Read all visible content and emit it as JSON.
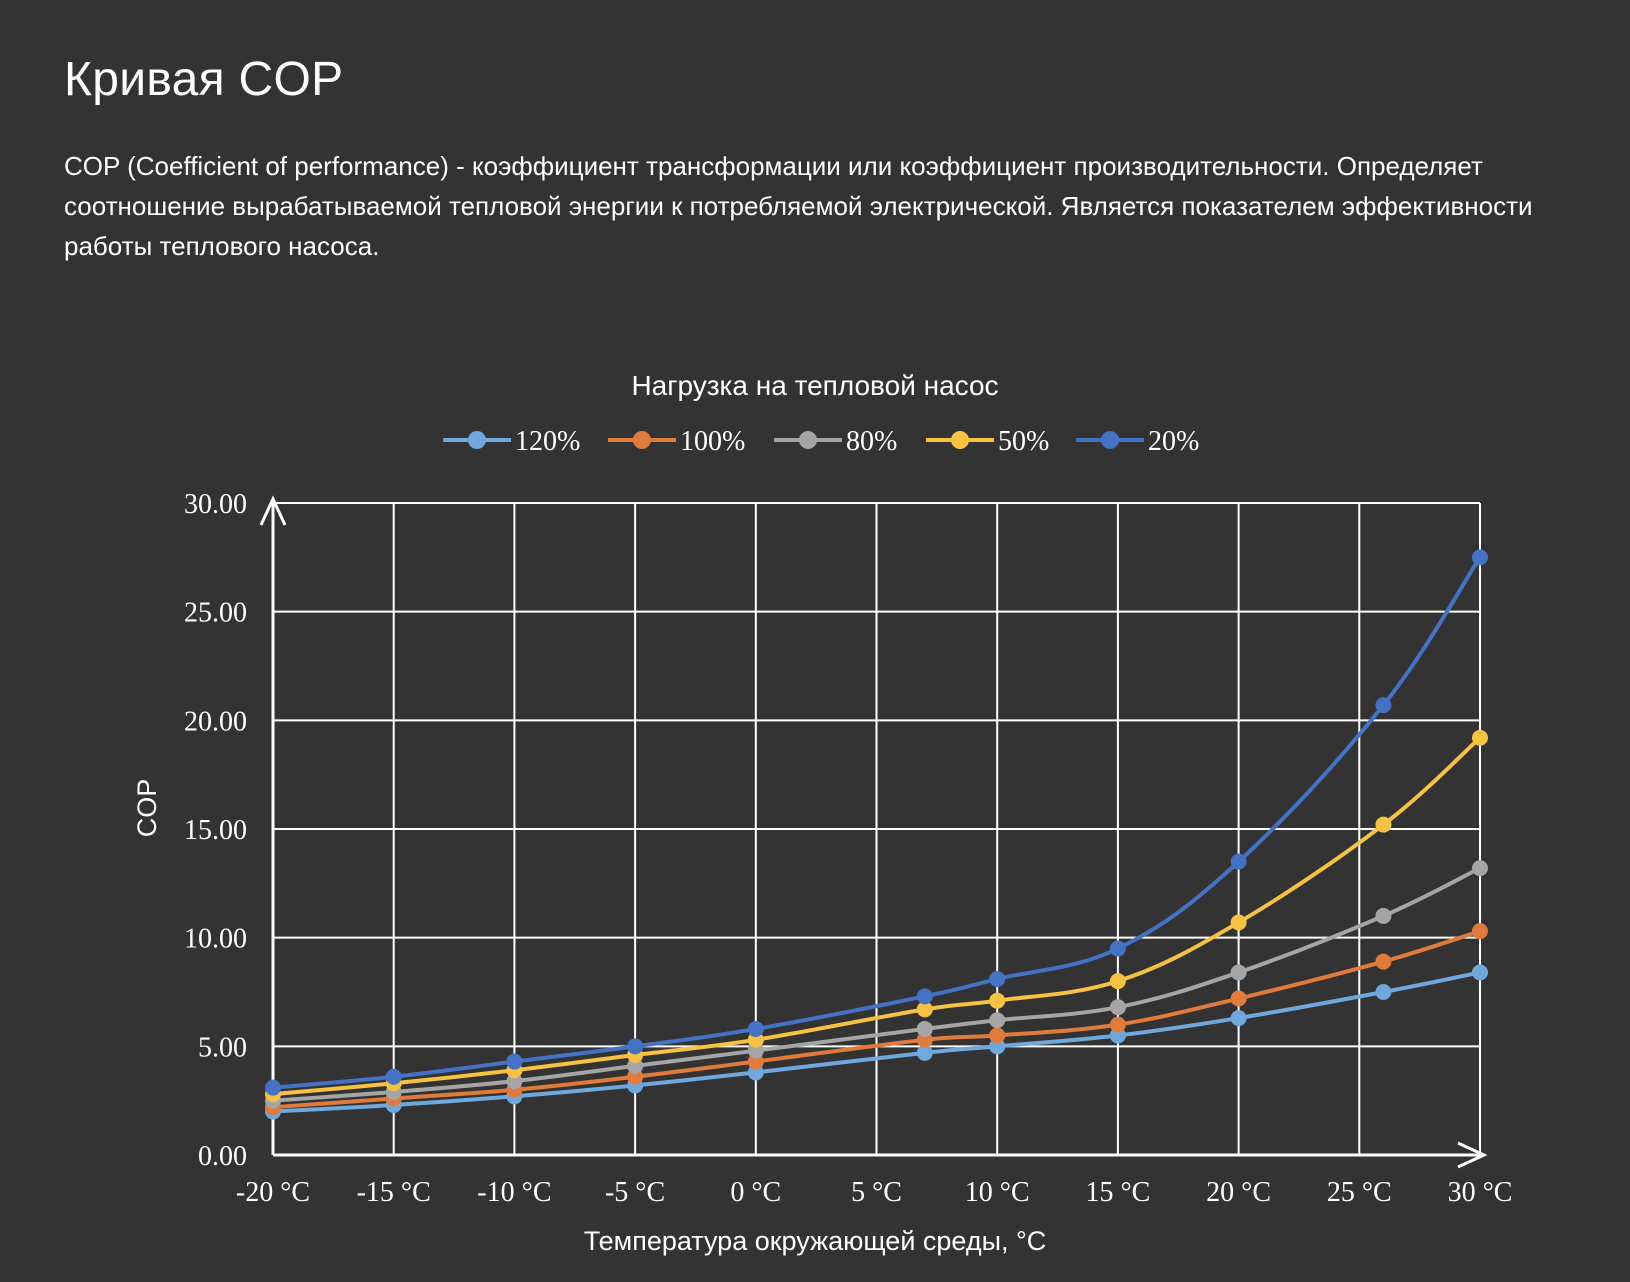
{
  "page": {
    "title": "Кривая COP",
    "description": "COP (Coefficient of performance) - коэффициент трансформации или коэффициент производительности. Определяет соотношение вырабатываемой тепловой энергии к потребляемой электрической. Является показателем эффективности работы теплового насоса."
  },
  "chart_data": {
    "type": "line",
    "title": "Нагрузка на тепловой насос",
    "xlabel": "Температура окружающей среды, °C",
    "ylabel": "COP",
    "x_ticks": [
      "-20 °C",
      "-15 °C",
      "-10 °C",
      "-5 °C",
      "0 °C",
      "5 °C",
      "10 °C",
      "15 °C",
      "20 °C",
      "25 °C",
      "30 °C"
    ],
    "x_tick_values": [
      -20,
      -15,
      -10,
      -5,
      0,
      5,
      10,
      15,
      20,
      25,
      30
    ],
    "y_ticks": [
      "0.00",
      "5.00",
      "10.00",
      "15.00",
      "20.00",
      "25.00",
      "30.00"
    ],
    "y_tick_values": [
      0,
      5,
      10,
      15,
      20,
      25,
      30
    ],
    "xlim": [
      -20,
      30
    ],
    "ylim": [
      0,
      30
    ],
    "grid": true,
    "legend_position": "top",
    "x": [
      -20,
      -15,
      -10,
      -5,
      0,
      7,
      10,
      15,
      20,
      26,
      30
    ],
    "series": [
      {
        "name": "120%",
        "color": "#6fa8dc",
        "values": [
          2.0,
          2.3,
          2.7,
          3.2,
          3.8,
          4.7,
          5.0,
          5.5,
          6.3,
          7.5,
          8.4
        ]
      },
      {
        "name": "100%",
        "color": "#e07b3c",
        "values": [
          2.2,
          2.6,
          3.0,
          3.6,
          4.3,
          5.3,
          5.5,
          6.0,
          7.2,
          8.9,
          10.3
        ]
      },
      {
        "name": "80%",
        "color": "#a5a5a5",
        "values": [
          2.5,
          2.9,
          3.4,
          4.1,
          4.8,
          5.8,
          6.2,
          6.8,
          8.4,
          11.0,
          13.2
        ]
      },
      {
        "name": "50%",
        "color": "#f5c242",
        "values": [
          2.8,
          3.3,
          3.9,
          4.6,
          5.3,
          6.7,
          7.1,
          8.0,
          10.7,
          15.2,
          19.2
        ]
      },
      {
        "name": "20%",
        "color": "#4472c4",
        "values": [
          3.1,
          3.6,
          4.3,
          5.0,
          5.8,
          7.3,
          8.1,
          9.5,
          13.5,
          20.7,
          27.5
        ]
      }
    ]
  }
}
